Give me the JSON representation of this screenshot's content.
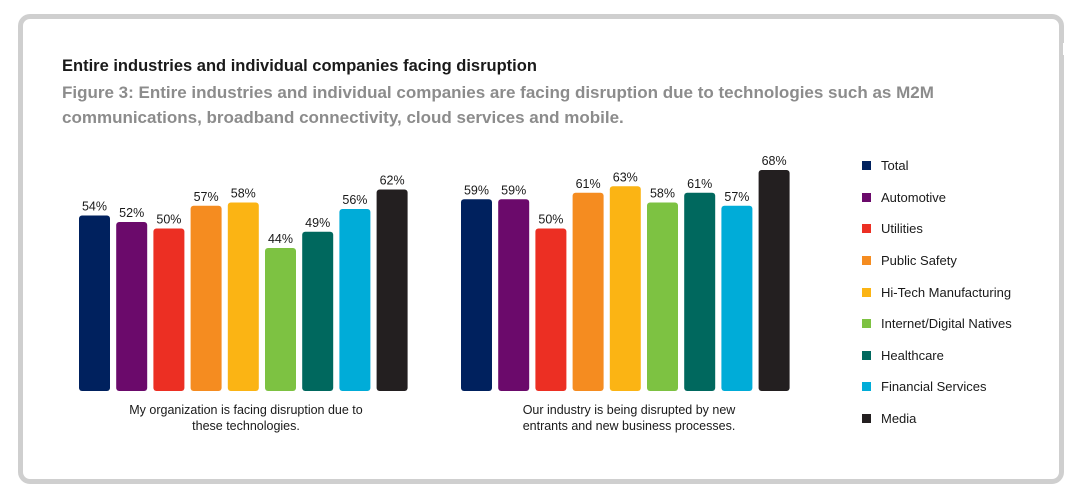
{
  "title": "Entire industries and individual companies facing disruption",
  "subtitle": "Figure 3: Entire industries and individual companies are facing disruption due to technologies such as M2M communications, broadband connectivity, cloud services and mobile.",
  "chart_data": {
    "type": "bar",
    "series_names": [
      "Total",
      "Automotive",
      "Utilities",
      "Public Safety",
      "Hi-Tech Manufacturing",
      "Internet/Digital Natives",
      "Healthcare",
      "Financial Services",
      "Media"
    ],
    "colors": [
      "#00215e",
      "#6b0a6b",
      "#ec2f23",
      "#f58c20",
      "#fbb414",
      "#7dc242",
      "#00685e",
      "#00acd8",
      "#231f20"
    ],
    "groups": [
      {
        "label_line1": "My organization is facing disruption due to",
        "label_line2": "these technologies.",
        "values": [
          54,
          52,
          50,
          57,
          58,
          44,
          49,
          56,
          62
        ]
      },
      {
        "label_line1": "Our industry is being disrupted by new",
        "label_line2": "entrants and new business processes.",
        "values": [
          59,
          59,
          50,
          61,
          63,
          58,
          61,
          57,
          68
        ]
      }
    ],
    "value_suffix": "%",
    "legend_position": "right"
  }
}
